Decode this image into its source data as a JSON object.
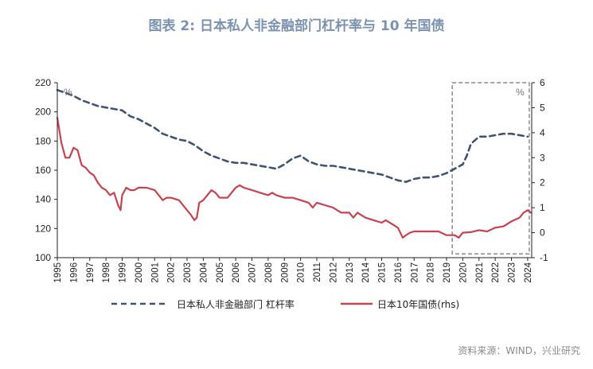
{
  "title": "图表 2:  日本私人非金融部门杠杆率与 10 年国债",
  "source": "资料来源：WIND，兴业研究",
  "colors": {
    "leverage": "#3f5373",
    "jgb": "#c9424f",
    "title": "#7b93b0",
    "box": "#8a8a8a"
  },
  "chart_data": {
    "type": "line",
    "title": "图表 2:  日本私人非金融部门杠杆率与 10 年国债",
    "x_labels": [
      "1995",
      "1996",
      "1997",
      "1998",
      "1999",
      "2000",
      "2001",
      "2002",
      "2003",
      "2004",
      "2005",
      "2006",
      "2007",
      "2008",
      "2009",
      "2010",
      "2011",
      "2012",
      "2013",
      "2014",
      "2015",
      "2016",
      "2017",
      "2018",
      "2019",
      "2020",
      "2021",
      "2022",
      "2023",
      "2024"
    ],
    "y_left": {
      "ticks": [
        100,
        120,
        140,
        160,
        180,
        200,
        220
      ],
      "ylim": [
        100,
        220
      ],
      "unit": "%"
    },
    "y_right": {
      "ticks": [
        -1,
        0,
        1,
        2,
        3,
        4,
        5,
        6
      ],
      "ylim": [
        -1,
        6
      ],
      "unit": "%"
    },
    "xlim": [
      1995.0,
      2024.25
    ],
    "highlight_box": {
      "x": [
        2019.35,
        2024.1
      ],
      "y_right": [
        -0.85,
        6
      ]
    },
    "series": [
      {
        "name": "日本私人非金融部门 杠杆率",
        "axis": "left",
        "style": "dashed",
        "x": [
          1995.0,
          1995.5,
          1996.0,
          1996.5,
          1997.0,
          1997.5,
          1998.0,
          1998.5,
          1999.0,
          1999.5,
          2000.0,
          2000.5,
          2001.0,
          2001.5,
          2002.0,
          2002.5,
          2003.0,
          2003.5,
          2004.0,
          2004.5,
          2005.0,
          2005.5,
          2006.0,
          2006.5,
          2007.0,
          2007.5,
          2008.0,
          2008.5,
          2009.0,
          2009.5,
          2010.0,
          2010.5,
          2011.0,
          2011.5,
          2012.0,
          2012.5,
          2013.0,
          2013.5,
          2014.0,
          2014.5,
          2015.0,
          2015.5,
          2016.0,
          2016.5,
          2017.0,
          2017.5,
          2018.0,
          2018.5,
          2019.0,
          2019.5,
          2020.0,
          2020.25,
          2020.5,
          2021.0,
          2021.5,
          2022.0,
          2022.5,
          2023.0,
          2023.5,
          2024.0
        ],
        "values": [
          215,
          213,
          211,
          208,
          206,
          204,
          203,
          202,
          201,
          197,
          195,
          192,
          189,
          185,
          183,
          181,
          180,
          177,
          173,
          170,
          168,
          166,
          165,
          165,
          164,
          163,
          162,
          161,
          164,
          168,
          170,
          166,
          164,
          163,
          163,
          162,
          161,
          160,
          159,
          158,
          157,
          155,
          153,
          152,
          154,
          155,
          155,
          156,
          158,
          161,
          164,
          170,
          178,
          183,
          183,
          184,
          185,
          185,
          184,
          183
        ]
      },
      {
        "name": "日本10年国债(rhs)",
        "axis": "right",
        "style": "solid",
        "x": [
          1995.0,
          1995.25,
          1995.5,
          1995.75,
          1996.0,
          1996.25,
          1996.5,
          1996.75,
          1997.0,
          1997.25,
          1997.5,
          1997.75,
          1998.0,
          1998.25,
          1998.5,
          1998.75,
          1998.9,
          1999.0,
          1999.25,
          1999.5,
          1999.75,
          2000.0,
          2000.5,
          2001.0,
          2001.25,
          2001.5,
          2001.75,
          2002.0,
          2002.5,
          2003.0,
          2003.25,
          2003.45,
          2003.6,
          2003.75,
          2004.0,
          2004.25,
          2004.5,
          2004.75,
          2005.0,
          2005.5,
          2006.0,
          2006.25,
          2006.5,
          2007.0,
          2007.5,
          2008.0,
          2008.25,
          2008.5,
          2009.0,
          2009.5,
          2010.0,
          2010.5,
          2010.75,
          2011.0,
          2011.5,
          2012.0,
          2012.5,
          2013.0,
          2013.25,
          2013.5,
          2014.0,
          2014.5,
          2015.0,
          2015.25,
          2015.5,
          2016.0,
          2016.3,
          2016.5,
          2016.75,
          2017.0,
          2017.5,
          2018.0,
          2018.5,
          2019.0,
          2019.5,
          2019.75,
          2020.0,
          2020.5,
          2021.0,
          2021.5,
          2022.0,
          2022.5,
          2023.0,
          2023.5,
          2023.75,
          2024.0,
          2024.2
        ],
        "values": [
          4.6,
          3.6,
          3.0,
          3.0,
          3.4,
          3.3,
          2.7,
          2.6,
          2.4,
          2.3,
          2.0,
          1.8,
          1.7,
          1.5,
          1.6,
          1.1,
          0.9,
          1.5,
          1.8,
          1.7,
          1.7,
          1.8,
          1.8,
          1.7,
          1.5,
          1.3,
          1.4,
          1.4,
          1.3,
          0.9,
          0.7,
          0.5,
          0.6,
          1.2,
          1.3,
          1.5,
          1.7,
          1.6,
          1.4,
          1.4,
          1.8,
          1.9,
          1.8,
          1.7,
          1.6,
          1.5,
          1.6,
          1.5,
          1.4,
          1.4,
          1.3,
          1.2,
          1.0,
          1.2,
          1.1,
          1.0,
          0.8,
          0.8,
          0.6,
          0.8,
          0.6,
          0.5,
          0.4,
          0.5,
          0.4,
          0.2,
          -0.2,
          -0.1,
          0.0,
          0.05,
          0.05,
          0.05,
          0.05,
          -0.1,
          -0.1,
          -0.2,
          0.0,
          0.02,
          0.1,
          0.05,
          0.2,
          0.25,
          0.45,
          0.6,
          0.8,
          0.9,
          0.8
        ]
      }
    ]
  }
}
